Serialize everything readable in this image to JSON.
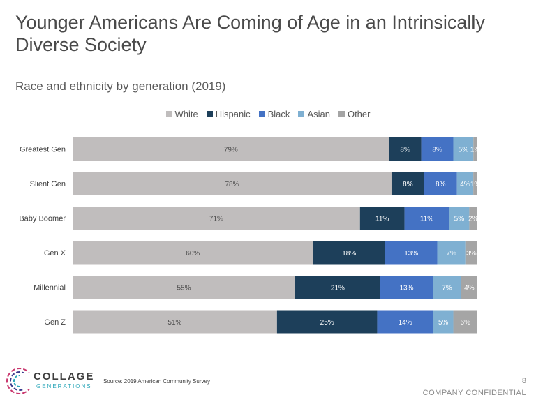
{
  "title": "Younger Americans Are Coming of Age in an Intrinsically Diverse Society",
  "subtitle": "Race and ethnicity by generation (2019)",
  "footer": {
    "logo_main": "COLLAGE",
    "logo_sub": "GENERATIONS",
    "source": "Source: 2019 American Community Survey",
    "page_number": "8",
    "confidential": "COMPANY CONFIDENTIAL"
  },
  "colors": {
    "White": "#c0bdbd",
    "Hispanic": "#1d3f5a",
    "Black": "#4472c4",
    "Asian": "#7fb0d2",
    "Other": "#a5a5a5"
  },
  "chart_data": {
    "type": "bar",
    "orientation": "horizontal",
    "stacked": true,
    "categories": [
      "Greatest Gen",
      "Slient Gen",
      "Baby Boomer",
      "Gen X",
      "Millennial",
      "Gen Z"
    ],
    "series": [
      {
        "name": "White",
        "values": [
          79,
          78,
          71,
          60,
          55,
          51
        ],
        "labels": [
          "79%",
          "78%",
          "71%",
          "60%",
          "55%",
          "51%"
        ]
      },
      {
        "name": "Hispanic",
        "values": [
          8,
          8,
          11,
          18,
          21,
          25
        ],
        "labels": [
          "8%",
          "8%",
          "11%",
          "18%",
          "21%",
          "25%"
        ]
      },
      {
        "name": "Black",
        "values": [
          8,
          8,
          11,
          13,
          13,
          14
        ],
        "labels": [
          "8%",
          "8%",
          "11%",
          "13%",
          "13%",
          "14%"
        ]
      },
      {
        "name": "Asian",
        "values": [
          5,
          4,
          5,
          7,
          7,
          5
        ],
        "labels": [
          "5%",
          "4%",
          "5%",
          "7%",
          "7%",
          "5%"
        ]
      },
      {
        "name": "Other",
        "values": [
          1,
          1,
          2,
          3,
          4,
          6
        ],
        "labels": [
          "1%",
          "1%",
          "2%",
          "3%",
          "4%",
          "6%"
        ]
      }
    ],
    "legend_position": "top",
    "grid": false,
    "xlim": [
      0,
      100
    ]
  }
}
